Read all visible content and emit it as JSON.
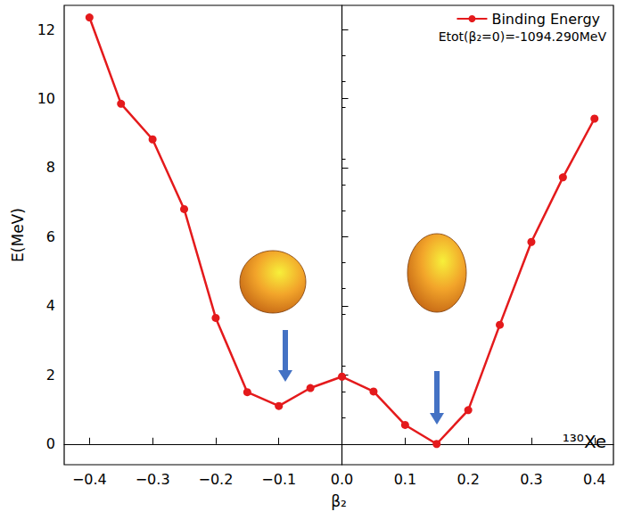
{
  "chart_data": {
    "type": "line",
    "xlabel": "β₂",
    "ylabel": "E(MeV)",
    "x": [
      -0.4,
      -0.35,
      -0.3,
      -0.25,
      -0.2,
      -0.15,
      -0.1,
      -0.05,
      0.0,
      0.05,
      0.1,
      0.15,
      0.2,
      0.25,
      0.3,
      0.35,
      0.4
    ],
    "series": [
      {
        "name": "Binding Energy",
        "color": "#e41a1c",
        "marker": "circle",
        "line_style": "solid",
        "values": [
          12.35,
          9.85,
          8.82,
          6.8,
          3.65,
          1.5,
          1.1,
          1.62,
          1.95,
          1.52,
          0.55,
          0.0,
          0.98,
          3.45,
          5.85,
          7.72,
          9.42
        ]
      }
    ],
    "xlim": [
      -0.44,
      0.43
    ],
    "ylim": [
      -0.6,
      12.7
    ],
    "xticks": [
      {
        "value": -0.4,
        "label": "−0.4"
      },
      {
        "value": -0.3,
        "label": "−0.3"
      },
      {
        "value": -0.2,
        "label": "−0.2"
      },
      {
        "value": -0.1,
        "label": "−0.1"
      },
      {
        "value": 0,
        "label": "0.0"
      },
      {
        "value": 0.1,
        "label": "0.1"
      },
      {
        "value": 0.2,
        "label": "0.2"
      },
      {
        "value": 0.3,
        "label": "0.3"
      },
      {
        "value": 0.4,
        "label": "0.4"
      }
    ],
    "yticks": [
      0,
      2,
      4,
      6,
      8,
      10,
      12
    ],
    "annotations": [
      "Etot(β₂=0)=-1094.290MeV",
      "¹³⁰Xe"
    ],
    "legend": "upper right",
    "grid": false
  }
}
